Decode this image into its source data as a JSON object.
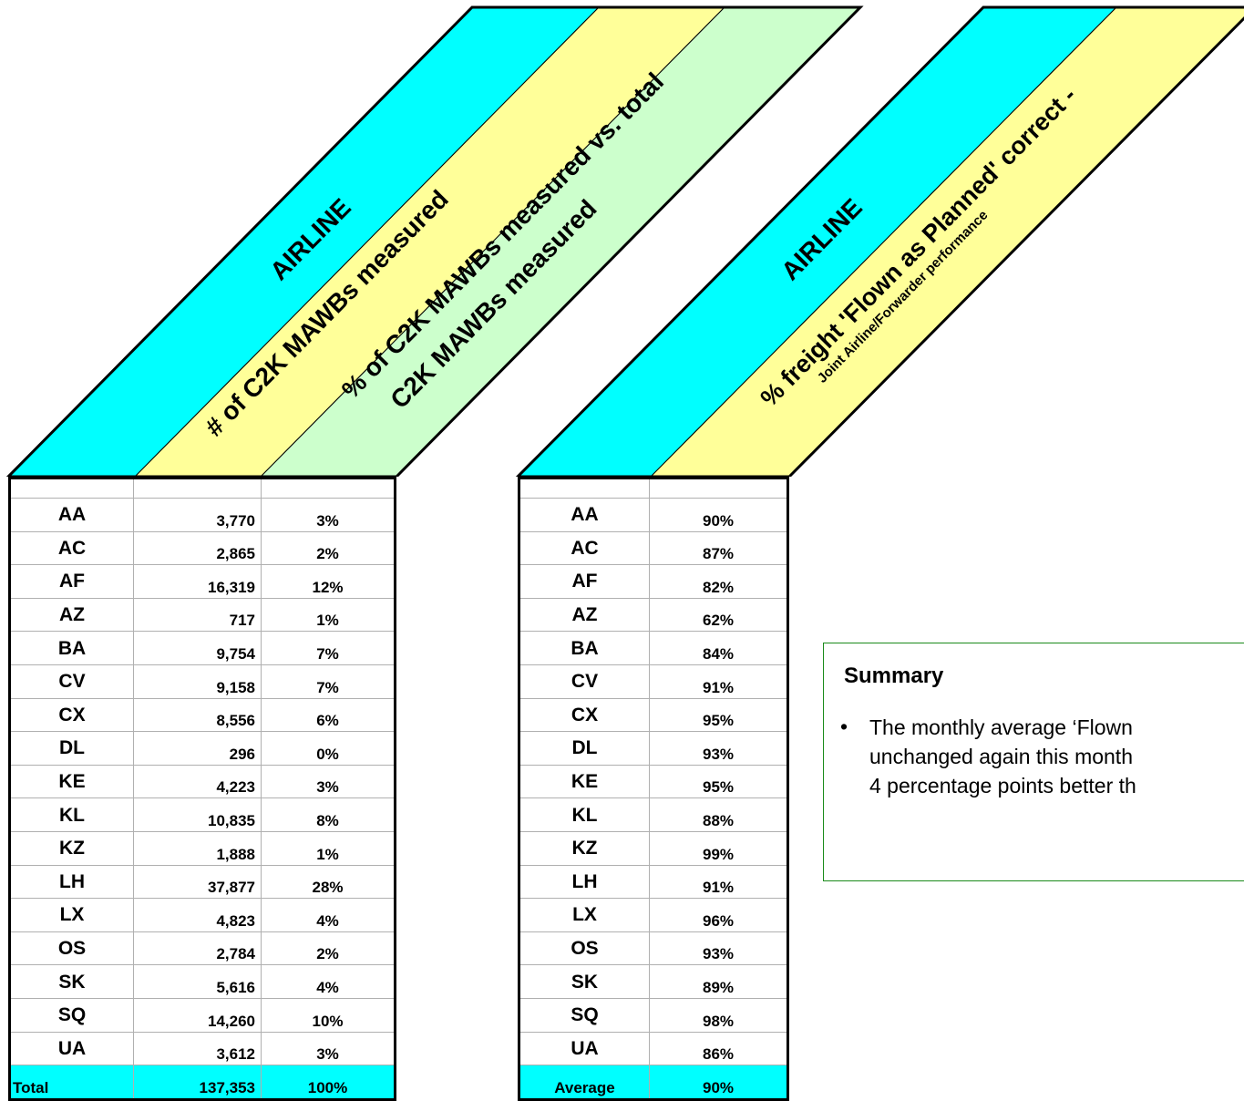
{
  "table1": {
    "headers": {
      "airline": "AIRLINE",
      "count": "# of C2K MAWBs measured",
      "pct_line1": "% of  C2K MAWBs measured vs. total",
      "pct_line2": "C2K MAWBs measured"
    },
    "rows": [
      {
        "code": "AA",
        "count": "3,770",
        "pct": "3%"
      },
      {
        "code": "AC",
        "count": "2,865",
        "pct": "2%"
      },
      {
        "code": "AF",
        "count": "16,319",
        "pct": "12%"
      },
      {
        "code": "AZ",
        "count": "717",
        "pct": "1%"
      },
      {
        "code": "BA",
        "count": "9,754",
        "pct": "7%"
      },
      {
        "code": "CV",
        "count": "9,158",
        "pct": "7%"
      },
      {
        "code": "CX",
        "count": "8,556",
        "pct": "6%"
      },
      {
        "code": "DL",
        "count": "296",
        "pct": "0%"
      },
      {
        "code": "KE",
        "count": "4,223",
        "pct": "3%"
      },
      {
        "code": "KL",
        "count": "10,835",
        "pct": "8%"
      },
      {
        "code": "KZ",
        "count": "1,888",
        "pct": "1%"
      },
      {
        "code": "LH",
        "count": "37,877",
        "pct": "28%"
      },
      {
        "code": "LX",
        "count": "4,823",
        "pct": "4%"
      },
      {
        "code": "OS",
        "count": "2,784",
        "pct": "2%"
      },
      {
        "code": "SK",
        "count": "5,616",
        "pct": "4%"
      },
      {
        "code": "SQ",
        "count": "14,260",
        "pct": "10%"
      },
      {
        "code": "UA",
        "count": "3,612",
        "pct": "3%"
      }
    ],
    "total": {
      "label": "Total",
      "count": "137,353",
      "pct": "100%"
    }
  },
  "table2": {
    "headers": {
      "airline": "AIRLINE",
      "pct_line1": "% freight 'Flown as Planned' correct -",
      "pct_line2": "Joint Airline/Forwarder performance"
    },
    "rows": [
      {
        "code": "AA",
        "pct": "90%"
      },
      {
        "code": "AC",
        "pct": "87%"
      },
      {
        "code": "AF",
        "pct": "82%"
      },
      {
        "code": "AZ",
        "pct": "62%"
      },
      {
        "code": "BA",
        "pct": "84%"
      },
      {
        "code": "CV",
        "pct": "91%"
      },
      {
        "code": "CX",
        "pct": "95%"
      },
      {
        "code": "DL",
        "pct": "93%"
      },
      {
        "code": "KE",
        "pct": "95%"
      },
      {
        "code": "KL",
        "pct": "88%"
      },
      {
        "code": "KZ",
        "pct": "99%"
      },
      {
        "code": "LH",
        "pct": "91%"
      },
      {
        "code": "LX",
        "pct": "96%"
      },
      {
        "code": "OS",
        "pct": "93%"
      },
      {
        "code": "SK",
        "pct": "89%"
      },
      {
        "code": "SQ",
        "pct": "98%"
      },
      {
        "code": "UA",
        "pct": "86%"
      }
    ],
    "average": {
      "label": "Average",
      "pct": "90%"
    }
  },
  "summary": {
    "title": "Summary",
    "bullet": "•",
    "lines": [
      "The monthly average ‘Flown",
      "unchanged again this month",
      "4 percentage points better th"
    ]
  },
  "colors": {
    "cyan": "#00FFFF",
    "yellow": "#FFFF99",
    "green": "#CCFFCC",
    "summary_border": "#1A8A1A"
  }
}
